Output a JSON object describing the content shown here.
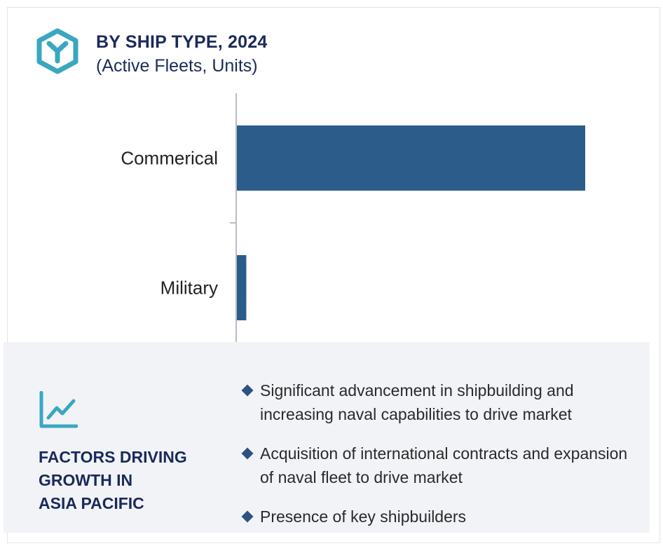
{
  "header": {
    "title": "BY SHIP TYPE, 2024",
    "subtitle": "(Active Fleets, Units)",
    "icon": "cube-y-icon"
  },
  "colors": {
    "bar": "#2b5c8a",
    "title": "#1a2a5a",
    "icon_teal": "#3aa7c1",
    "axis": "#b9bdc4",
    "panel_bg": "#f1f3f7",
    "bullet": "#2b5283"
  },
  "chart_data": {
    "type": "bar",
    "orientation": "horizontal",
    "title": "BY SHIP TYPE, 2024",
    "subtitle": "(Active Fleets, Units)",
    "categories": [
      "Commerical",
      "Military"
    ],
    "values": [
      100,
      2.7
    ],
    "xlim": [
      0,
      100
    ],
    "grid": false,
    "legend": "none"
  },
  "factors": {
    "icon": "line-chart-icon",
    "heading": "FACTORS DRIVING\nGROWTH IN\nASIA PACIFIC",
    "bullets": [
      "Significant advancement in shipbuilding and increasing naval capabilities to drive market",
      "Acquisition of international contracts and expansion of naval fleet to drive market",
      "Presence of key shipbuilders"
    ]
  }
}
